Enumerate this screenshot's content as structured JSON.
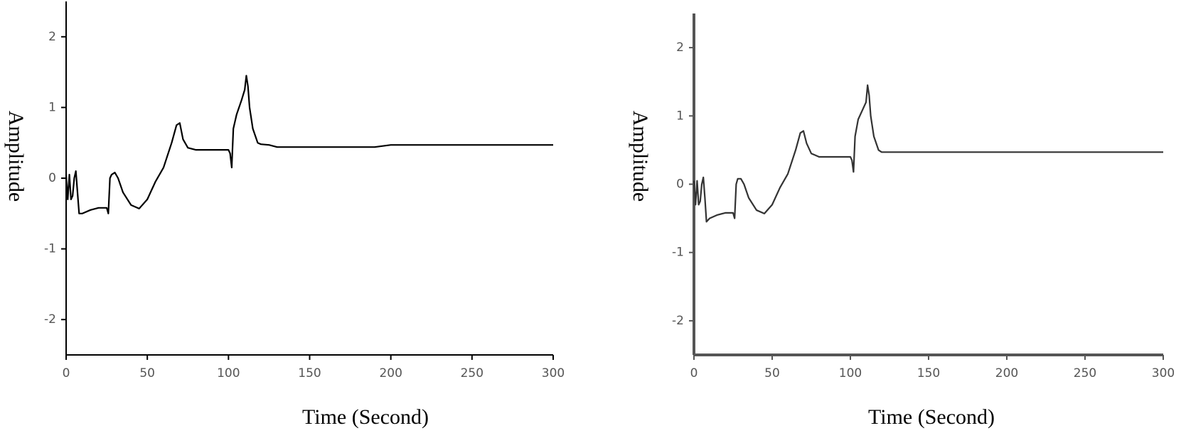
{
  "chart_data": [
    {
      "type": "line",
      "x_label": "Time (Second)",
      "y_label": "Amplitude",
      "color": "#000000",
      "x": [
        0,
        1,
        2,
        3,
        4,
        5,
        6,
        7,
        8,
        10,
        15,
        20,
        25,
        26,
        27,
        28,
        30,
        32,
        35,
        40,
        45,
        50,
        55,
        60,
        65,
        68,
        70,
        72,
        75,
        80,
        90,
        100,
        101,
        102,
        103,
        105,
        108,
        110,
        111,
        112,
        113,
        115,
        118,
        120,
        125,
        130,
        150,
        190,
        200,
        250,
        300
      ],
      "values": [
        0.05,
        -0.3,
        0.05,
        -0.3,
        -0.25,
        0,
        0.1,
        -0.2,
        -0.5,
        -0.5,
        -0.45,
        -0.42,
        -0.42,
        -0.5,
        0,
        0.05,
        0.08,
        0,
        -0.2,
        -0.38,
        -0.43,
        -0.3,
        -0.05,
        0.15,
        0.5,
        0.75,
        0.78,
        0.55,
        0.43,
        0.4,
        0.4,
        0.4,
        0.35,
        0.15,
        0.7,
        0.9,
        1.1,
        1.25,
        1.45,
        1.3,
        1.0,
        0.7,
        0.5,
        0.48,
        0.47,
        0.44,
        0.44,
        0.44,
        0.47,
        0.47,
        0.47
      ],
      "xlim": [
        0,
        300
      ],
      "ylim": [
        -2.5,
        2.5
      ],
      "xticks": [
        0,
        50,
        100,
        150,
        200,
        250,
        300
      ],
      "yticks": [
        -2,
        -1,
        0,
        1,
        2
      ]
    },
    {
      "type": "line",
      "x_label": "Time (Second)",
      "y_label": "Amplitude",
      "color": "#333333",
      "x": [
        0,
        1,
        2,
        3,
        4,
        5,
        6,
        7,
        8,
        10,
        15,
        20,
        25,
        26,
        27,
        28,
        30,
        32,
        35,
        40,
        45,
        50,
        55,
        60,
        65,
        68,
        70,
        72,
        75,
        80,
        90,
        100,
        101,
        102,
        103,
        105,
        108,
        110,
        111,
        112,
        113,
        115,
        118,
        120,
        125,
        130,
        150,
        190,
        200,
        250,
        300
      ],
      "values": [
        0.05,
        -0.3,
        0.05,
        -0.3,
        -0.25,
        0,
        0.1,
        -0.2,
        -0.55,
        -0.5,
        -0.45,
        -0.42,
        -0.42,
        -0.5,
        0,
        0.08,
        0.08,
        0,
        -0.2,
        -0.38,
        -0.43,
        -0.3,
        -0.05,
        0.15,
        0.5,
        0.75,
        0.78,
        0.6,
        0.45,
        0.4,
        0.4,
        0.4,
        0.35,
        0.18,
        0.7,
        0.95,
        1.1,
        1.2,
        1.45,
        1.3,
        1.0,
        0.7,
        0.5,
        0.47,
        0.47,
        0.47,
        0.47,
        0.47,
        0.47,
        0.47,
        0.47
      ],
      "xlim": [
        0,
        300
      ],
      "ylim": [
        -2.5,
        2.5
      ],
      "xticks": [
        0,
        50,
        100,
        150,
        200,
        250,
        300
      ],
      "yticks": [
        -2,
        -1,
        0,
        1,
        2
      ]
    }
  ]
}
